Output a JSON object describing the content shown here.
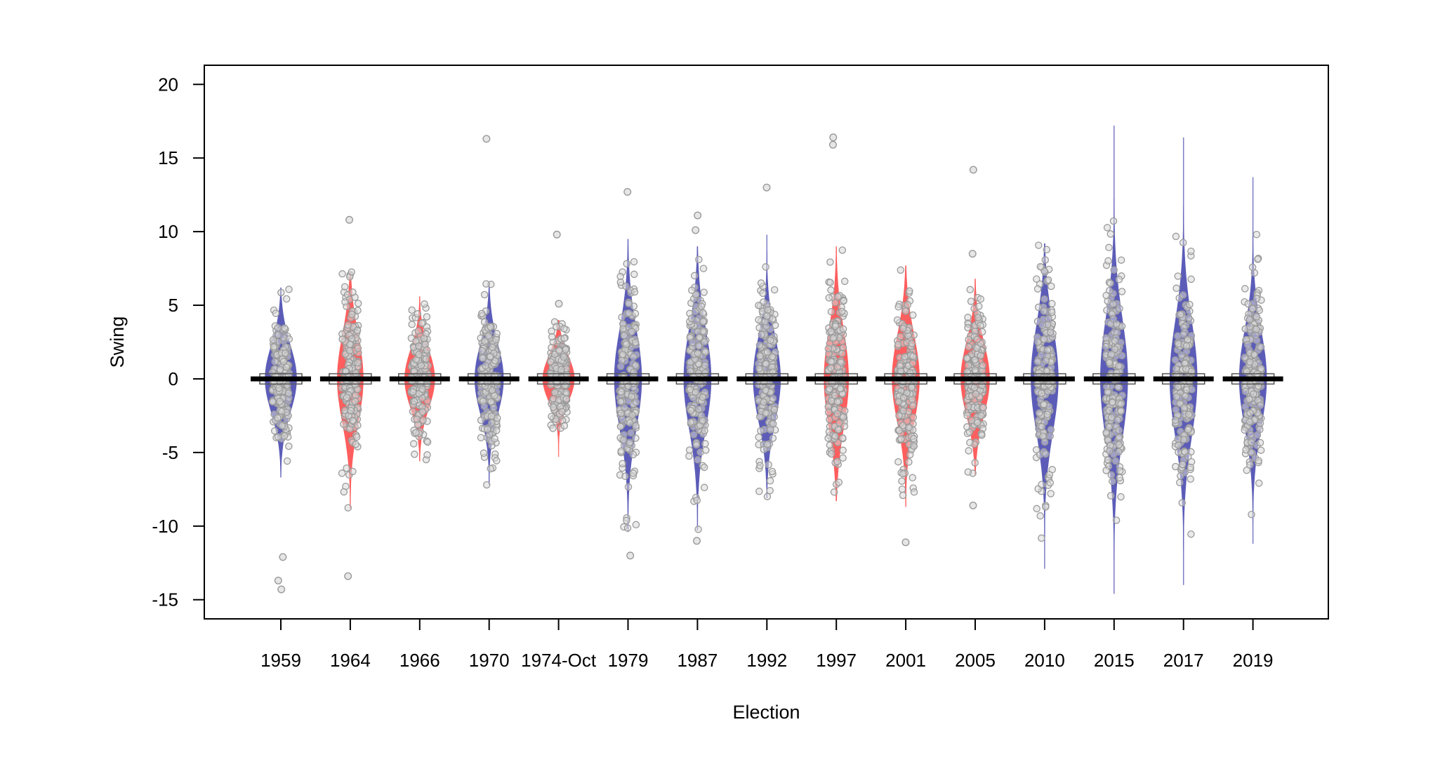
{
  "chart_data": {
    "type": "violin",
    "title": "",
    "xlabel": "Election",
    "ylabel": "Swing",
    "ylim": [
      -16.3,
      21.3
    ],
    "yticks": [
      -15,
      -10,
      -5,
      0,
      5,
      10,
      15,
      20
    ],
    "grid": false,
    "legend": "none",
    "colors": {
      "blue": "#5c5cb8",
      "red": "#ff5e5e",
      "points": "#9a9a9a",
      "median": "#000000"
    },
    "categories": [
      "1959",
      "1964",
      "1966",
      "1970",
      "1974-Oct",
      "1979",
      "1987",
      "1992",
      "1997",
      "2001",
      "2005",
      "2010",
      "2015",
      "2017",
      "2019"
    ],
    "series": [
      {
        "category": "1959",
        "fill": "blue",
        "width": 0.46,
        "sd": 2.3,
        "min": -6.7,
        "max": 6.2,
        "outliers": [
          -12.1,
          -13.7,
          -14.3
        ]
      },
      {
        "category": "1964",
        "fill": "red",
        "width": 0.38,
        "sd": 3.0,
        "min": -8.8,
        "max": 7.3,
        "outliers": [
          10.8,
          -13.4
        ]
      },
      {
        "category": "1966",
        "fill": "red",
        "width": 0.44,
        "sd": 2.0,
        "min": -5.6,
        "max": 5.6,
        "outliers": []
      },
      {
        "category": "1970",
        "fill": "blue",
        "width": 0.42,
        "sd": 2.4,
        "min": -7.2,
        "max": 6.6,
        "outliers": [
          16.3
        ]
      },
      {
        "category": "1974-Oct",
        "fill": "red",
        "width": 0.46,
        "sd": 1.6,
        "min": -5.3,
        "max": 4.0,
        "outliers": [
          9.8,
          5.1
        ]
      },
      {
        "category": "1979",
        "fill": "blue",
        "width": 0.4,
        "sd": 3.4,
        "min": -10.4,
        "max": 9.5,
        "outliers": [
          12.7,
          -12.0
        ]
      },
      {
        "category": "1987",
        "fill": "blue",
        "width": 0.4,
        "sd": 3.4,
        "min": -10.3,
        "max": 9.0,
        "outliers": [
          11.1,
          10.1,
          -11.0
        ]
      },
      {
        "category": "1992",
        "fill": "blue",
        "width": 0.4,
        "sd": 2.9,
        "min": -8.1,
        "max": 9.8,
        "outliers": [
          13.0
        ]
      },
      {
        "category": "1997",
        "fill": "red",
        "width": 0.36,
        "sd": 3.3,
        "min": -8.3,
        "max": 9.0,
        "outliers": [
          16.4,
          15.9
        ]
      },
      {
        "category": "2001",
        "fill": "red",
        "width": 0.4,
        "sd": 3.0,
        "min": -8.7,
        "max": 7.7,
        "outliers": [
          -11.1
        ]
      },
      {
        "category": "2005",
        "fill": "red",
        "width": 0.42,
        "sd": 2.5,
        "min": -6.5,
        "max": 6.8,
        "outliers": [
          14.2,
          8.5,
          -8.6
        ]
      },
      {
        "category": "2010",
        "fill": "blue",
        "width": 0.4,
        "sd": 3.6,
        "min": -12.9,
        "max": 9.2,
        "outliers": []
      },
      {
        "category": "2015",
        "fill": "blue",
        "width": 0.4,
        "sd": 4.1,
        "min": -14.6,
        "max": 17.2,
        "outliers": []
      },
      {
        "category": "2017",
        "fill": "blue",
        "width": 0.4,
        "sd": 3.9,
        "min": -14.0,
        "max": 16.4,
        "outliers": []
      },
      {
        "category": "2019",
        "fill": "blue",
        "width": 0.4,
        "sd": 3.3,
        "min": -11.2,
        "max": 13.7,
        "outliers": []
      }
    ]
  }
}
